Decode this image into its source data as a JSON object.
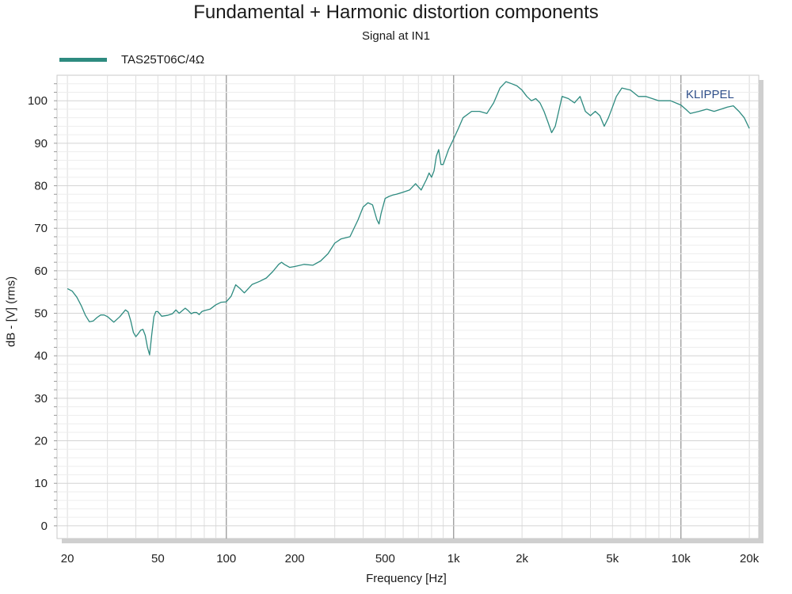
{
  "chart_data": {
    "type": "line",
    "title": "Fundamental + Harmonic distortion components",
    "subtitle": "Signal at IN1",
    "xlabel": "Frequency [Hz]",
    "ylabel": "dB - [V]  (rms)",
    "x_scale": "log",
    "xlim": [
      18,
      22000
    ],
    "ylim": [
      -3,
      106
    ],
    "x_ticks": [
      20,
      50,
      100,
      200,
      500,
      1000,
      2000,
      5000,
      10000,
      20000
    ],
    "x_tick_labels": [
      "20",
      "50",
      "100",
      "200",
      "500",
      "1k",
      "2k",
      "5k",
      "10k",
      "20k"
    ],
    "y_ticks": [
      0,
      10,
      20,
      30,
      40,
      50,
      60,
      70,
      80,
      90,
      100
    ],
    "y_tick_labels": [
      "0",
      "10",
      "20",
      "30",
      "40",
      "50",
      "60",
      "70",
      "80",
      "90",
      "100"
    ],
    "grid": true,
    "legend_position": "top-left",
    "watermark": "KLIPPEL",
    "series": [
      {
        "name": "TAS25T06C/4Ω",
        "color": "#2e8b80",
        "x": [
          20,
          21,
          22,
          23,
          24,
          25,
          26,
          27,
          28,
          29,
          30,
          32,
          34,
          36,
          37,
          38,
          39,
          40,
          41,
          42,
          43,
          44,
          45,
          46,
          47,
          48,
          49,
          50,
          52,
          55,
          58,
          60,
          62,
          64,
          66,
          68,
          70,
          72,
          74,
          76,
          78,
          80,
          85,
          90,
          95,
          100,
          105,
          110,
          115,
          120,
          125,
          130,
          140,
          150,
          160,
          170,
          175,
          180,
          190,
          200,
          220,
          240,
          260,
          280,
          300,
          320,
          350,
          380,
          400,
          420,
          440,
          460,
          470,
          480,
          500,
          520,
          540,
          560,
          600,
          640,
          680,
          720,
          760,
          780,
          800,
          820,
          840,
          860,
          880,
          900,
          950,
          1000,
          1050,
          1100,
          1200,
          1300,
          1400,
          1500,
          1600,
          1700,
          1800,
          1900,
          2000,
          2100,
          2200,
          2300,
          2400,
          2500,
          2600,
          2700,
          2800,
          2900,
          3000,
          3200,
          3400,
          3600,
          3800,
          4000,
          4200,
          4400,
          4600,
          4800,
          5000,
          5200,
          5500,
          6000,
          6500,
          7000,
          8000,
          9000,
          10000,
          10500,
          11000,
          12000,
          13000,
          14000,
          15000,
          16000,
          17000,
          18000,
          19000,
          20000
        ],
        "y": [
          55.8,
          55.2,
          53.8,
          51.8,
          49.5,
          48.0,
          48.2,
          49.0,
          49.6,
          49.6,
          49.2,
          47.9,
          49.2,
          50.8,
          50.3,
          48.2,
          45.5,
          44.5,
          45.2,
          46.0,
          46.2,
          44.8,
          42.0,
          40.2,
          45.0,
          49.2,
          50.4,
          50.4,
          49.3,
          49.5,
          49.9,
          50.8,
          50.0,
          50.6,
          51.2,
          50.6,
          49.9,
          50.2,
          50.2,
          49.7,
          50.4,
          50.6,
          51.0,
          52.0,
          52.6,
          52.7,
          54.0,
          56.7,
          55.8,
          54.8,
          55.8,
          56.8,
          57.5,
          58.3,
          59.8,
          61.5,
          62.0,
          61.5,
          60.8,
          61.0,
          61.5,
          61.3,
          62.3,
          64.0,
          66.5,
          67.5,
          68.0,
          72.0,
          75.0,
          76.0,
          75.5,
          72.0,
          71.0,
          73.5,
          77.0,
          77.5,
          77.8,
          78.0,
          78.5,
          79.0,
          80.5,
          79.0,
          81.5,
          83.0,
          82.0,
          83.5,
          87.0,
          88.5,
          85.0,
          85.0,
          88.5,
          91.0,
          93.5,
          96.0,
          97.5,
          97.5,
          97.0,
          99.5,
          103.0,
          104.5,
          104.0,
          103.5,
          102.5,
          101.0,
          100.0,
          100.5,
          99.5,
          97.5,
          95.0,
          92.5,
          94.0,
          97.5,
          101.0,
          100.5,
          99.5,
          101.0,
          97.5,
          96.5,
          97.5,
          96.5,
          94.0,
          96.0,
          98.5,
          101.0,
          103.0,
          102.5,
          101.0,
          101.0,
          100.0,
          100.0,
          99.0,
          98.0,
          97.0,
          97.5,
          98.0,
          97.5,
          98.0,
          98.5,
          98.8,
          97.5,
          96.0,
          93.5
        ]
      }
    ]
  }
}
